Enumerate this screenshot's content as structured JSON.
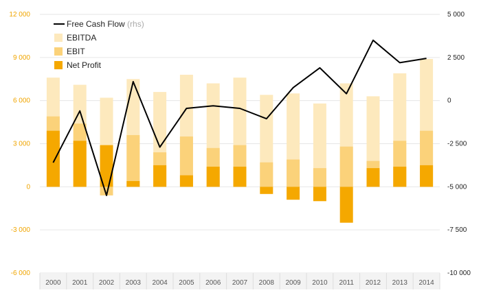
{
  "chart_data": {
    "type": "bar",
    "categories": [
      "2000",
      "2001",
      "2002",
      "2003",
      "2004",
      "2005",
      "2006",
      "2007",
      "2008",
      "2009",
      "2010",
      "2011",
      "2012",
      "2013",
      "2014"
    ],
    "series": [
      {
        "name": "EBITDA",
        "axis": "left",
        "color": "#fde9bd",
        "values": [
          7600,
          7100,
          6200,
          7500,
          6600,
          7800,
          7200,
          7600,
          6400,
          6500,
          5800,
          7200,
          6300,
          7900,
          8900
        ]
      },
      {
        "name": "EBIT",
        "axis": "left",
        "color": "#fbd27a",
        "values": [
          4900,
          4400,
          -600,
          3600,
          2400,
          3500,
          2700,
          2900,
          1700,
          1900,
          1300,
          2800,
          1800,
          3200,
          3900
        ]
      },
      {
        "name": "Net Profit",
        "axis": "left",
        "color": "#f5a800",
        "values": [
          3900,
          3200,
          2900,
          400,
          1500,
          800,
          1400,
          1400,
          -500,
          -900,
          -1000,
          -2500,
          1300,
          1400,
          1500
        ]
      },
      {
        "name": "Free Cash Flow",
        "suffix": "(rhs)",
        "axis": "right",
        "type": "line",
        "color": "#000000",
        "values": [
          -3600,
          -600,
          -5500,
          1100,
          -2700,
          -450,
          -300,
          -450,
          -1050,
          750,
          1900,
          400,
          3500,
          2200,
          2450
        ]
      }
    ],
    "left_axis": {
      "ylim": [
        -6000,
        12000
      ],
      "ticks": [
        "-6 000",
        "-3 000",
        "0",
        "3 000",
        "6 000",
        "9 000",
        "12 000"
      ],
      "tick_values": [
        -6000,
        -3000,
        0,
        3000,
        6000,
        9000,
        12000
      ]
    },
    "right_axis": {
      "ylim": [
        -10000,
        5000
      ],
      "ticks": [
        "-10 000",
        "-7 500",
        "-5 000",
        "-2 500",
        "0",
        "2 500",
        "5 000"
      ],
      "tick_values": [
        -10000,
        -7500,
        -5000,
        -2500,
        0,
        2500,
        5000
      ]
    },
    "legend_position": "top-left",
    "grid": true,
    "colors": {
      "left_tick": "#f0a500",
      "right_tick": "#222222",
      "grid": "#e6e6e6",
      "axis_band": "#f3f3f3"
    }
  }
}
